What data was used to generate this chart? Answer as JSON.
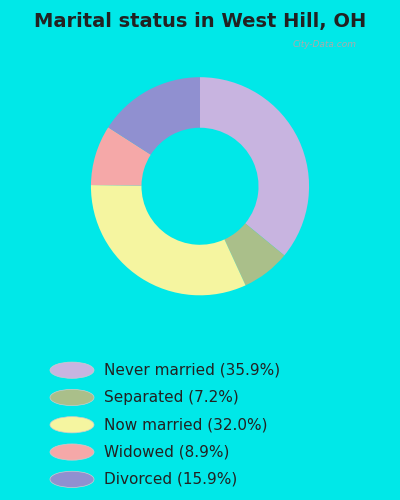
{
  "title": "Marital status in West Hill, OH",
  "slices": [
    {
      "label": "Never married (35.9%)",
      "value": 35.9,
      "color": "#c8b4e0"
    },
    {
      "label": "Separated (7.2%)",
      "value": 7.2,
      "color": "#aabf8a"
    },
    {
      "label": "Now married (32.0%)",
      "value": 32.0,
      "color": "#f5f5a0"
    },
    {
      "label": "Widowed (8.9%)",
      "value": 8.9,
      "color": "#f5a8a8"
    },
    {
      "label": "Divorced (15.9%)",
      "value": 15.9,
      "color": "#9090d0"
    }
  ],
  "bg_cyan": "#00e8e8",
  "bg_chart": "#c8eadc",
  "title_fontsize": 14,
  "legend_fontsize": 11,
  "watermark": "City-Data.com"
}
